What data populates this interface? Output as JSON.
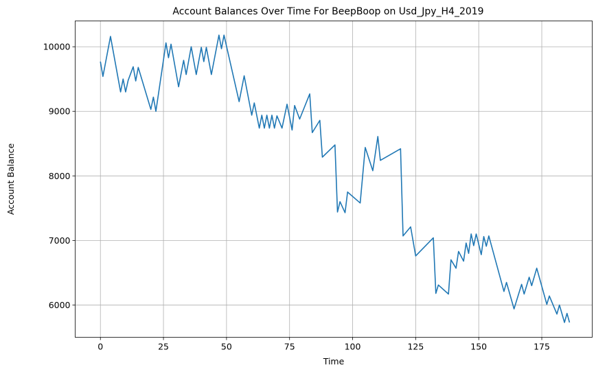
{
  "chart_data": {
    "type": "line",
    "title": "Account Balances Over Time For BeepBoop on Usd_Jpy_H4_2019",
    "xlabel": "Time",
    "ylabel": "Account Balance",
    "xlim": [
      -10,
      195
    ],
    "ylim": [
      5500,
      10400
    ],
    "xticks": [
      0,
      25,
      50,
      75,
      100,
      125,
      150,
      175
    ],
    "yticks": [
      6000,
      7000,
      8000,
      9000,
      10000
    ],
    "grid": true,
    "line_color": "#1f77b4",
    "series": [
      {
        "x": [
          0,
          1,
          4,
          8,
          9,
          10,
          11,
          13,
          14,
          15,
          20,
          21,
          22,
          26,
          27,
          28,
          31,
          33,
          34,
          36,
          38,
          40,
          41,
          42,
          44,
          47,
          48,
          49,
          55,
          57,
          60,
          61,
          63,
          64,
          65,
          66,
          67,
          68,
          69,
          70,
          72,
          74,
          76,
          77,
          79,
          83,
          84,
          87,
          88,
          93,
          94,
          95,
          97,
          98,
          103,
          105,
          108,
          110,
          111,
          119,
          120,
          123,
          125,
          132,
          133,
          134,
          138,
          139,
          141,
          142,
          144,
          145,
          146,
          147,
          148,
          149,
          151,
          152,
          153,
          154,
          160,
          161,
          164,
          167,
          168,
          170,
          171,
          173,
          177,
          178,
          181,
          182,
          184,
          185,
          186
        ],
        "values": [
          9770,
          9540,
          10160,
          9300,
          9500,
          9300,
          9480,
          9690,
          9470,
          9680,
          9030,
          9220,
          9000,
          10060,
          9830,
          10040,
          9380,
          9790,
          9570,
          10000,
          9570,
          9990,
          9770,
          9990,
          9570,
          10180,
          9970,
          10180,
          9150,
          9550,
          8940,
          9130,
          8740,
          8940,
          8740,
          8940,
          8740,
          8940,
          8740,
          8930,
          8740,
          9110,
          8710,
          9090,
          8880,
          9270,
          8670,
          8860,
          8290,
          8480,
          7440,
          7600,
          7430,
          7750,
          7580,
          8440,
          8080,
          8610,
          8240,
          8420,
          7070,
          7210,
          6760,
          7040,
          6180,
          6310,
          6170,
          6700,
          6570,
          6830,
          6680,
          6960,
          6800,
          7100,
          6920,
          7100,
          6780,
          7060,
          6910,
          7070,
          6210,
          6350,
          5940,
          6320,
          6170,
          6430,
          6300,
          6570,
          6010,
          6140,
          5860,
          6000,
          5730,
          5870,
          5730
        ]
      }
    ]
  }
}
